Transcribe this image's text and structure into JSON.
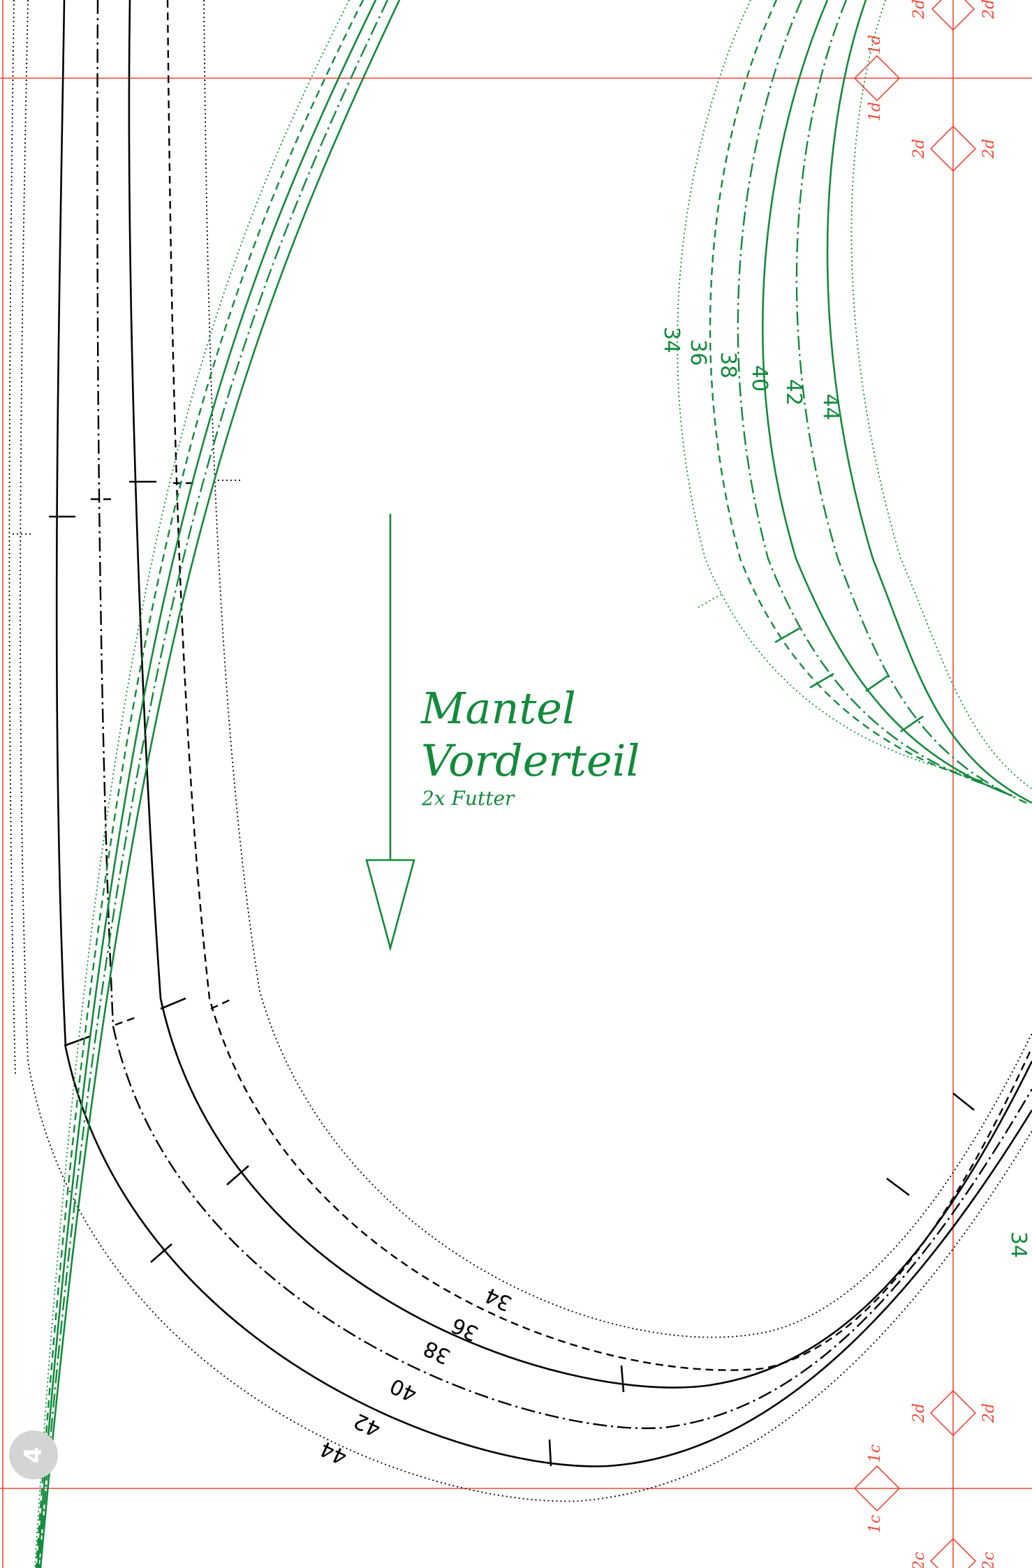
{
  "piece": {
    "title_line1": "Mantel",
    "title_line2": "Vorderteil",
    "subtitle": "2x Futter"
  },
  "sizes_black": [
    "34",
    "36",
    "38",
    "40",
    "42",
    "44"
  ],
  "sizes_green": [
    "34",
    "36",
    "38",
    "40",
    "42",
    "44"
  ],
  "edge_size_label": "34",
  "marks": {
    "d1": "1d",
    "d2": "2d",
    "c1": "1c",
    "c2": "2c"
  },
  "page_number": "4",
  "colors": {
    "green": "#138a3c",
    "red": "#ee4a3a",
    "black": "#000000",
    "badge": "#d4d4d4"
  }
}
